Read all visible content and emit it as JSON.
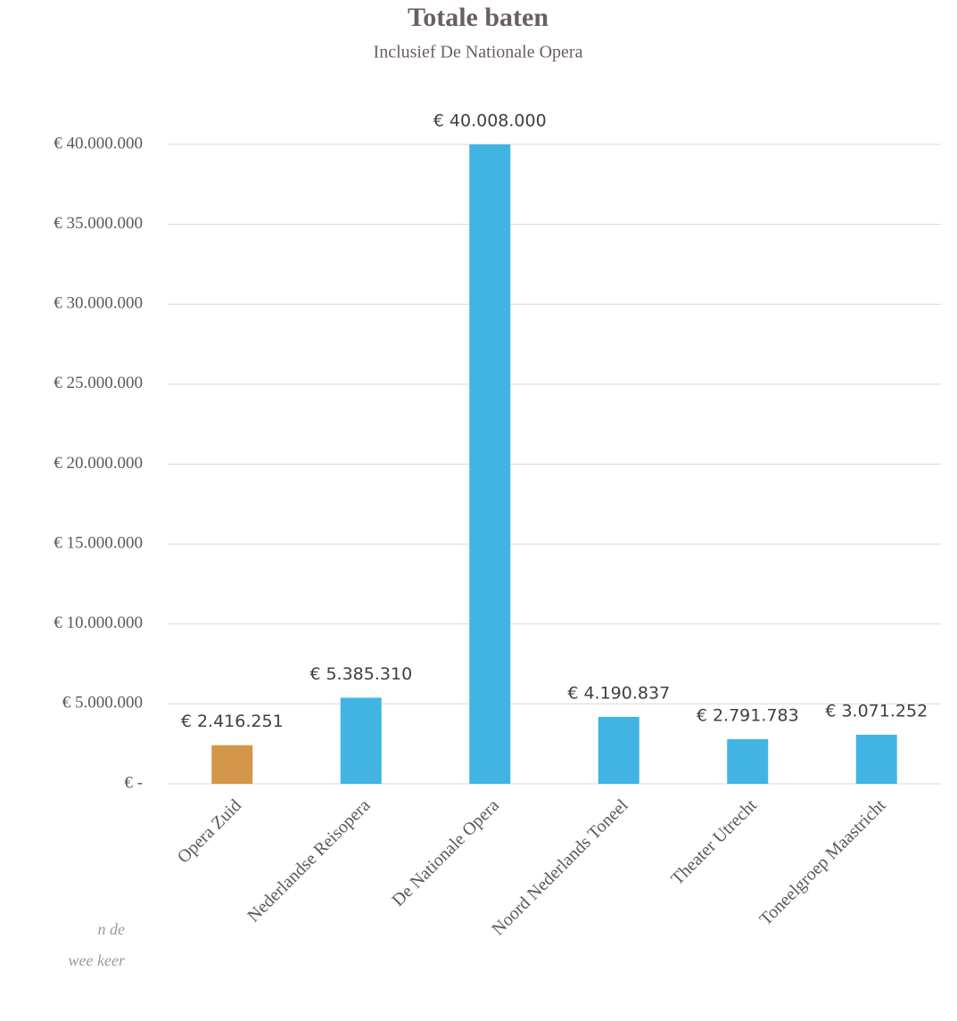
{
  "chart_data": {
    "type": "bar",
    "title": "Totale baten",
    "subtitle": "Inclusief De Nationale Opera",
    "categories": [
      "Opera Zuid",
      "Nederlandse Reisopera",
      "De Nationale Opera",
      "Noord Nederlands Toneel",
      "Theater Utrecht",
      "Toneelgroep Maastricht"
    ],
    "values": [
      2416251,
      5385310,
      40008000,
      4190837,
      2791783,
      3071252
    ],
    "value_labels": [
      "€ 2.416.251",
      "€ 5.385.310",
      "€ 40.008.000",
      "€ 4.190.837",
      "€ 2.791.783",
      "€ 3.071.252"
    ],
    "colors": [
      "#d4964a",
      "#41b4e4",
      "#41b4e4",
      "#41b4e4",
      "#41b4e4",
      "#41b4e4"
    ],
    "ylim": [
      0,
      40000000
    ],
    "yticks": [
      {
        "value": 0,
        "label": "€ -"
      },
      {
        "value": 5000000,
        "label": "€ 5.000.000"
      },
      {
        "value": 10000000,
        "label": "€ 10.000.000"
      },
      {
        "value": 15000000,
        "label": "€ 15.000.000"
      },
      {
        "value": 20000000,
        "label": "€ 20.000.000"
      },
      {
        "value": 25000000,
        "label": "€ 25.000.000"
      },
      {
        "value": 30000000,
        "label": "€ 30.000.000"
      },
      {
        "value": 35000000,
        "label": "€ 35.000.000"
      },
      {
        "value": 40000000,
        "label": "€ 40.000.000"
      }
    ],
    "grid": true,
    "annotations": [
      "n de",
      "wee keer"
    ]
  }
}
